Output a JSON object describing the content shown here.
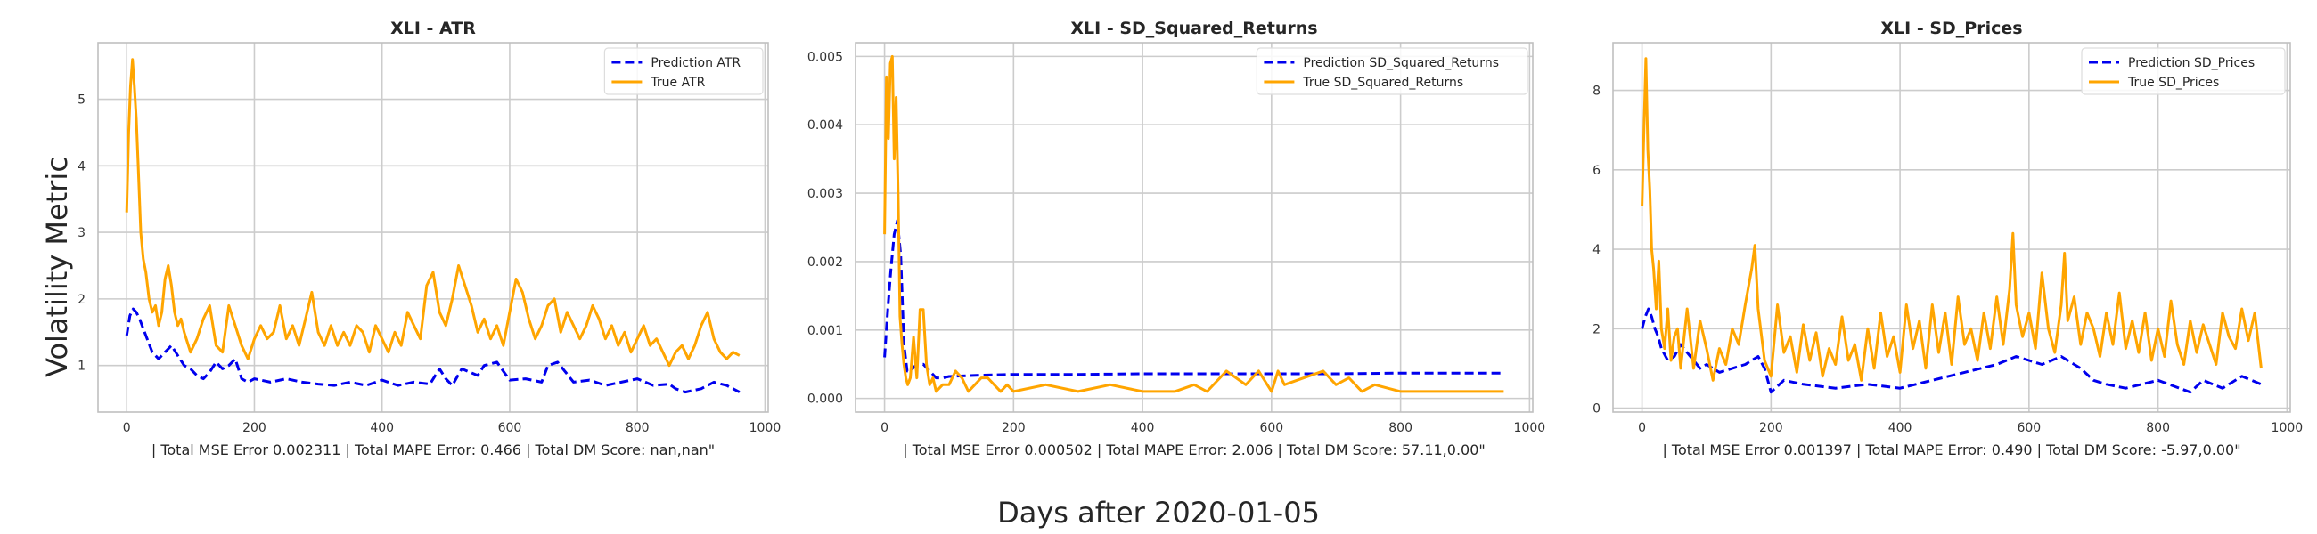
{
  "figure": {
    "supxlabel": "Days after 2020-01-05",
    "supylabel": "Volatility Metric",
    "colors": {
      "prediction": "#0000ee",
      "true": "#ffa500",
      "grid": "#cccccc",
      "frame": "#bfbfbf"
    }
  },
  "chart_data": [
    {
      "type": "line",
      "title": "XLI - ATR",
      "xlabel": "| Total MSE Error 0.002311 | Total MAPE Error: 0.466 | Total DM Score: nan,nan\"",
      "ylabel": "",
      "xlim": [
        -45,
        1005
      ],
      "ylim": [
        0.3,
        5.85
      ],
      "xticks": [
        0,
        200,
        400,
        600,
        800,
        1000
      ],
      "xtick_labels": [
        "0",
        "200",
        "400",
        "600",
        "800",
        "1000"
      ],
      "yticks": [
        1,
        2,
        3,
        4,
        5
      ],
      "ytick_labels": [
        "1",
        "2",
        "3",
        "4",
        "5"
      ],
      "grid": true,
      "legend_position": "top-right",
      "series": [
        {
          "name": "Prediction ATR",
          "style": "dashed",
          "color": "#0000ee",
          "x": [
            0,
            5,
            10,
            15,
            20,
            30,
            40,
            50,
            60,
            70,
            80,
            90,
            100,
            110,
            120,
            130,
            140,
            150,
            160,
            170,
            180,
            190,
            200,
            225,
            250,
            275,
            300,
            325,
            350,
            375,
            400,
            425,
            450,
            475,
            490,
            500,
            510,
            525,
            550,
            560,
            580,
            600,
            625,
            650,
            660,
            675,
            700,
            725,
            750,
            775,
            800,
            825,
            850,
            860,
            875,
            900,
            920,
            940,
            960
          ],
          "y": [
            1.45,
            1.75,
            1.85,
            1.8,
            1.7,
            1.45,
            1.2,
            1.1,
            1.2,
            1.3,
            1.15,
            1.0,
            0.95,
            0.85,
            0.8,
            0.9,
            1.05,
            0.95,
            1.0,
            1.1,
            0.8,
            0.75,
            0.8,
            0.75,
            0.8,
            0.75,
            0.72,
            0.7,
            0.75,
            0.7,
            0.78,
            0.7,
            0.75,
            0.72,
            0.95,
            0.8,
            0.7,
            0.95,
            0.85,
            1.0,
            1.05,
            0.78,
            0.8,
            0.75,
            1.0,
            1.05,
            0.75,
            0.78,
            0.7,
            0.75,
            0.8,
            0.7,
            0.72,
            0.65,
            0.6,
            0.65,
            0.75,
            0.7,
            0.6
          ]
        },
        {
          "name": "True ATR",
          "style": "solid",
          "color": "#ffa500",
          "x": [
            0,
            3,
            6,
            9,
            12,
            15,
            18,
            22,
            26,
            30,
            35,
            40,
            45,
            50,
            55,
            60,
            65,
            70,
            75,
            80,
            85,
            90,
            100,
            110,
            120,
            130,
            140,
            150,
            160,
            170,
            180,
            190,
            200,
            210,
            220,
            230,
            240,
            250,
            260,
            270,
            280,
            290,
            300,
            310,
            320,
            330,
            340,
            350,
            360,
            370,
            380,
            390,
            400,
            410,
            420,
            430,
            440,
            450,
            460,
            470,
            480,
            490,
            500,
            510,
            520,
            530,
            540,
            550,
            560,
            570,
            580,
            590,
            600,
            610,
            620,
            630,
            640,
            650,
            660,
            670,
            680,
            690,
            700,
            710,
            720,
            730,
            740,
            750,
            760,
            770,
            780,
            790,
            800,
            810,
            820,
            830,
            840,
            850,
            860,
            870,
            880,
            890,
            900,
            910,
            920,
            930,
            940,
            950,
            960
          ],
          "y": [
            3.3,
            4.5,
            5.2,
            5.6,
            5.2,
            4.7,
            4.0,
            3.0,
            2.6,
            2.4,
            2.0,
            1.8,
            1.9,
            1.6,
            1.8,
            2.3,
            2.5,
            2.2,
            1.8,
            1.6,
            1.7,
            1.5,
            1.2,
            1.4,
            1.7,
            1.9,
            1.3,
            1.2,
            1.9,
            1.6,
            1.3,
            1.1,
            1.4,
            1.6,
            1.4,
            1.5,
            1.9,
            1.4,
            1.6,
            1.3,
            1.7,
            2.1,
            1.5,
            1.3,
            1.6,
            1.3,
            1.5,
            1.3,
            1.6,
            1.5,
            1.2,
            1.6,
            1.4,
            1.2,
            1.5,
            1.3,
            1.8,
            1.6,
            1.4,
            2.2,
            2.4,
            1.8,
            1.6,
            2.0,
            2.5,
            2.2,
            1.9,
            1.5,
            1.7,
            1.4,
            1.6,
            1.3,
            1.8,
            2.3,
            2.1,
            1.7,
            1.4,
            1.6,
            1.9,
            2.0,
            1.5,
            1.8,
            1.6,
            1.4,
            1.6,
            1.9,
            1.7,
            1.4,
            1.6,
            1.3,
            1.5,
            1.2,
            1.4,
            1.6,
            1.3,
            1.4,
            1.2,
            1.0,
            1.2,
            1.3,
            1.1,
            1.3,
            1.6,
            1.8,
            1.4,
            1.2,
            1.1,
            1.2,
            1.15
          ]
        }
      ]
    },
    {
      "type": "line",
      "title": "XLI - SD_Squared_Returns",
      "xlabel": "| Total MSE Error 0.000502 | Total MAPE Error: 2.006 | Total DM Score: 57.11,0.00\"",
      "ylabel": "",
      "xlim": [
        -45,
        1005
      ],
      "ylim": [
        -0.0002,
        0.0052
      ],
      "xticks": [
        0,
        200,
        400,
        600,
        800,
        1000
      ],
      "xtick_labels": [
        "0",
        "200",
        "400",
        "600",
        "800",
        "1000"
      ],
      "yticks": [
        0.0,
        0.001,
        0.002,
        0.003,
        0.004,
        0.005
      ],
      "ytick_labels": [
        "0.000",
        "0.001",
        "0.002",
        "0.003",
        "0.004",
        "0.005"
      ],
      "grid": true,
      "legend_position": "top-right",
      "series": [
        {
          "name": "Prediction SD_Squared_Returns",
          "style": "dashed",
          "color": "#0000ee",
          "x": [
            0,
            5,
            10,
            15,
            20,
            25,
            30,
            35,
            40,
            50,
            60,
            70,
            80,
            90,
            100,
            150,
            200,
            300,
            400,
            500,
            600,
            700,
            800,
            900,
            960
          ],
          "y": [
            0.0006,
            0.0013,
            0.0019,
            0.0024,
            0.0026,
            0.0021,
            0.0008,
            0.0004,
            0.0004,
            0.0005,
            0.0005,
            0.0004,
            0.0003,
            0.0003,
            0.00032,
            0.00034,
            0.00035,
            0.00035,
            0.00036,
            0.00036,
            0.00036,
            0.00036,
            0.00037,
            0.00037,
            0.00037
          ]
        },
        {
          "name": "True SD_Squared_Returns",
          "style": "solid",
          "color": "#ffa500",
          "x": [
            0,
            3,
            6,
            9,
            12,
            15,
            18,
            21,
            24,
            27,
            30,
            33,
            36,
            40,
            45,
            50,
            55,
            60,
            65,
            70,
            75,
            80,
            90,
            100,
            110,
            120,
            130,
            140,
            150,
            160,
            170,
            180,
            190,
            200,
            250,
            300,
            350,
            400,
            450,
            480,
            500,
            530,
            560,
            580,
            600,
            610,
            620,
            650,
            680,
            700,
            720,
            740,
            760,
            800,
            850,
            900,
            940,
            960
          ],
          "y": [
            0.0024,
            0.0047,
            0.0038,
            0.0049,
            0.005,
            0.0035,
            0.0044,
            0.003,
            0.0012,
            0.0008,
            0.0005,
            0.0003,
            0.0002,
            0.0003,
            0.0009,
            0.0003,
            0.0013,
            0.0013,
            0.0005,
            0.0002,
            0.0003,
            0.0001,
            0.0002,
            0.0002,
            0.0004,
            0.0003,
            0.0001,
            0.0002,
            0.0003,
            0.0003,
            0.0002,
            0.0001,
            0.0002,
            0.0001,
            0.0002,
            0.0001,
            0.0002,
            0.0001,
            0.0001,
            0.0002,
            0.0001,
            0.0004,
            0.0002,
            0.0004,
            0.0001,
            0.0004,
            0.0002,
            0.0003,
            0.0004,
            0.0002,
            0.0003,
            0.0001,
            0.0002,
            0.0001,
            0.0001,
            0.0001,
            0.0001,
            0.0001
          ]
        }
      ]
    },
    {
      "type": "line",
      "title": "XLI - SD_Prices",
      "xlabel": "| Total MSE Error 0.001397 | Total MAPE Error: 0.490 | Total DM Score: -5.97,0.00\"",
      "ylabel": "",
      "xlim": [
        -45,
        1005
      ],
      "ylim": [
        -0.1,
        9.2
      ],
      "xticks": [
        0,
        200,
        400,
        600,
        800,
        1000
      ],
      "xtick_labels": [
        "0",
        "200",
        "400",
        "600",
        "800",
        "1000"
      ],
      "yticks": [
        0,
        2,
        4,
        6,
        8
      ],
      "ytick_labels": [
        "0",
        "2",
        "4",
        "6",
        "8"
      ],
      "grid": true,
      "legend_position": "top-right",
      "series": [
        {
          "name": "Prediction SD_Prices",
          "style": "dashed",
          "color": "#0000ee",
          "x": [
            0,
            5,
            10,
            15,
            20,
            25,
            30,
            40,
            50,
            60,
            70,
            80,
            90,
            100,
            120,
            140,
            160,
            180,
            190,
            200,
            220,
            250,
            300,
            350,
            400,
            450,
            500,
            550,
            580,
            600,
            620,
            650,
            680,
            700,
            720,
            750,
            800,
            850,
            870,
            900,
            930,
            960
          ],
          "y": [
            2.0,
            2.3,
            2.5,
            2.3,
            2.0,
            1.8,
            1.5,
            1.2,
            1.3,
            1.6,
            1.4,
            1.2,
            1.0,
            1.1,
            0.9,
            1.0,
            1.1,
            1.3,
            1.0,
            0.4,
            0.7,
            0.6,
            0.5,
            0.6,
            0.5,
            0.7,
            0.9,
            1.1,
            1.3,
            1.2,
            1.1,
            1.3,
            1.0,
            0.7,
            0.6,
            0.5,
            0.7,
            0.4,
            0.7,
            0.5,
            0.8,
            0.6
          ]
        },
        {
          "name": "True SD_Prices",
          "style": "solid",
          "color": "#ffa500",
          "x": [
            0,
            3,
            6,
            9,
            12,
            15,
            18,
            22,
            26,
            30,
            35,
            40,
            45,
            50,
            55,
            60,
            70,
            80,
            90,
            100,
            110,
            120,
            130,
            140,
            150,
            160,
            170,
            175,
            180,
            190,
            200,
            210,
            220,
            230,
            240,
            250,
            260,
            270,
            280,
            290,
            300,
            310,
            320,
            330,
            340,
            350,
            360,
            370,
            380,
            390,
            400,
            410,
            420,
            430,
            440,
            450,
            460,
            470,
            480,
            490,
            500,
            510,
            520,
            530,
            540,
            550,
            560,
            570,
            575,
            580,
            590,
            600,
            610,
            620,
            630,
            640,
            650,
            655,
            660,
            670,
            680,
            690,
            700,
            710,
            720,
            730,
            740,
            750,
            760,
            770,
            780,
            790,
            800,
            810,
            820,
            830,
            840,
            850,
            860,
            870,
            880,
            890,
            900,
            910,
            920,
            930,
            940,
            950,
            960
          ],
          "y": [
            5.1,
            7.0,
            8.8,
            6.5,
            5.5,
            4.0,
            3.5,
            2.5,
            3.7,
            2.0,
            1.5,
            2.5,
            1.2,
            1.8,
            2.0,
            1.0,
            2.5,
            1.0,
            2.2,
            1.5,
            0.7,
            1.5,
            1.1,
            2.0,
            1.6,
            2.6,
            3.5,
            4.1,
            2.5,
            1.2,
            0.8,
            2.6,
            1.4,
            1.8,
            0.9,
            2.1,
            1.2,
            1.9,
            0.8,
            1.5,
            1.1,
            2.3,
            1.2,
            1.6,
            0.7,
            2.0,
            1.0,
            2.4,
            1.3,
            1.8,
            0.9,
            2.6,
            1.5,
            2.2,
            1.0,
            2.6,
            1.4,
            2.4,
            1.1,
            2.8,
            1.6,
            2.0,
            1.2,
            2.4,
            1.5,
            2.8,
            1.6,
            3.0,
            4.4,
            2.6,
            1.8,
            2.4,
            1.5,
            3.4,
            2.0,
            1.4,
            2.6,
            3.9,
            2.2,
            2.8,
            1.6,
            2.4,
            2.0,
            1.3,
            2.4,
            1.6,
            2.9,
            1.5,
            2.2,
            1.4,
            2.4,
            1.2,
            2.0,
            1.3,
            2.7,
            1.6,
            1.1,
            2.2,
            1.4,
            2.1,
            1.6,
            1.1,
            2.4,
            1.8,
            1.5,
            2.5,
            1.7,
            2.4,
            1.0
          ]
        }
      ]
    }
  ]
}
